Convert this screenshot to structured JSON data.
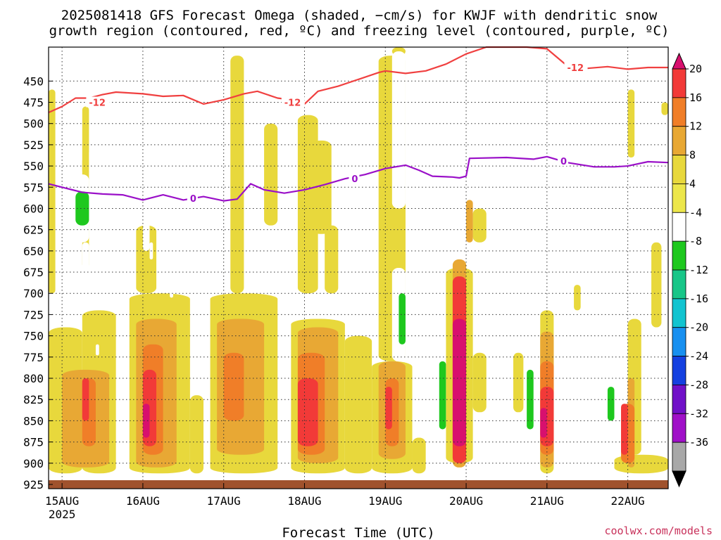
{
  "title_lines": [
    "2025081418 GFS Forecast Omega (shaded, −cm/s) for KWJF with dendritic snow",
    "growth region (contoured, red, ºC) and freezing level (contoured, purple, ºC)"
  ],
  "xlabel": "Forecast Time (UTC)",
  "credit": "coolwx.com/models",
  "chart_data": {
    "type": "heatmap",
    "title": "2025081418 GFS Forecast Omega (shaded, −cm/s) for KWJF with dendritic snow growth region (contoured, red, ºC) and freezing level (contoured, purple, ºC)",
    "xlabel": "Forecast Time (UTC)",
    "ylabel": "",
    "x_type": "time",
    "xlim": [
      "2025-08-14T20",
      "2025-08-22T12"
    ],
    "ylim": [
      930,
      410
    ],
    "y_reversed": true,
    "grid": true,
    "x_ticks": [
      {
        "label": "15AUG",
        "value": "2025-08-15T00",
        "sub": "2025"
      },
      {
        "label": "16AUG",
        "value": "2025-08-16T00",
        "sub": ""
      },
      {
        "label": "17AUG",
        "value": "2025-08-17T00",
        "sub": ""
      },
      {
        "label": "18AUG",
        "value": "2025-08-18T00",
        "sub": ""
      },
      {
        "label": "19AUG",
        "value": "2025-08-19T00",
        "sub": ""
      },
      {
        "label": "20AUG",
        "value": "2025-08-20T00",
        "sub": ""
      },
      {
        "label": "21AUG",
        "value": "2025-08-21T00",
        "sub": ""
      },
      {
        "label": "22AUG",
        "value": "2025-08-22T00",
        "sub": ""
      }
    ],
    "y_ticks": [
      450,
      475,
      500,
      525,
      550,
      575,
      600,
      625,
      650,
      675,
      700,
      725,
      750,
      775,
      800,
      825,
      850,
      875,
      900,
      925
    ],
    "colorbar": {
      "ticks": [
        20,
        16,
        12,
        8,
        4,
        -4,
        -8,
        -12,
        -16,
        -20,
        -24,
        -28,
        -32,
        -36
      ],
      "colors": [
        "#d8106e",
        "#f23a38",
        "#f07e28",
        "#e8a834",
        "#e8d83c",
        "#ece64a",
        "#ffffff",
        "#1ec81e",
        "#18c688",
        "#12c4d0",
        "#1890f0",
        "#1440e0",
        "#7010c8",
        "#a010c8",
        "#a8a8a8",
        "#000000"
      ]
    },
    "series": [
      {
        "name": "-12",
        "color": "#f04040",
        "points": [
          [
            "2025-08-14T20",
            487
          ],
          [
            "2025-08-15T00",
            480
          ],
          [
            "2025-08-15T04",
            470
          ],
          [
            "2025-08-15T08",
            470
          ],
          [
            "2025-08-15T12",
            466
          ],
          [
            "2025-08-15T16",
            463
          ],
          [
            "2025-08-16T00",
            465
          ],
          [
            "2025-08-16T06",
            468
          ],
          [
            "2025-08-16T12",
            467
          ],
          [
            "2025-08-16T18",
            477
          ],
          [
            "2025-08-17T00",
            472
          ],
          [
            "2025-08-17T06",
            465
          ],
          [
            "2025-08-17T10",
            462
          ],
          [
            "2025-08-17T16",
            470
          ],
          [
            "2025-08-17T20",
            472
          ],
          [
            "2025-08-18T00",
            477
          ],
          [
            "2025-08-18T04",
            462
          ],
          [
            "2025-08-18T10",
            456
          ],
          [
            "2025-08-18T16",
            448
          ],
          [
            "2025-08-18T22",
            440
          ],
          [
            "2025-08-19T00",
            438
          ],
          [
            "2025-08-19T06",
            441
          ],
          [
            "2025-08-19T12",
            438
          ],
          [
            "2025-08-19T18",
            430
          ],
          [
            "2025-08-20T00",
            418
          ],
          [
            "2025-08-20T06",
            407
          ],
          [
            "2025-08-20T18",
            407
          ],
          [
            "2025-08-21T00",
            412
          ],
          [
            "2025-08-21T06",
            432
          ],
          [
            "2025-08-21T12",
            435
          ],
          [
            "2025-08-21T18",
            433
          ],
          [
            "2025-08-22T00",
            436
          ],
          [
            "2025-08-22T06",
            434
          ],
          [
            "2025-08-22T12",
            434
          ]
        ]
      },
      {
        "name": "0",
        "color": "#9a10c8",
        "points": [
          [
            "2025-08-14T20",
            571
          ],
          [
            "2025-08-15T00",
            575
          ],
          [
            "2025-08-15T06",
            581
          ],
          [
            "2025-08-15T12",
            583
          ],
          [
            "2025-08-15T18",
            584
          ],
          [
            "2025-08-16T00",
            590
          ],
          [
            "2025-08-16T06",
            584
          ],
          [
            "2025-08-16T12",
            590
          ],
          [
            "2025-08-16T18",
            586
          ],
          [
            "2025-08-17T00",
            591
          ],
          [
            "2025-08-17T04",
            589
          ],
          [
            "2025-08-17T08",
            571
          ],
          [
            "2025-08-17T12",
            578
          ],
          [
            "2025-08-17T18",
            582
          ],
          [
            "2025-08-18T00",
            578
          ],
          [
            "2025-08-18T06",
            572
          ],
          [
            "2025-08-18T12",
            565
          ],
          [
            "2025-08-18T18",
            560
          ],
          [
            "2025-08-19T00",
            553
          ],
          [
            "2025-08-19T06",
            549
          ],
          [
            "2025-08-19T10",
            555
          ],
          [
            "2025-08-19T14",
            562
          ],
          [
            "2025-08-19T20",
            563
          ],
          [
            "2025-08-19T22",
            564
          ],
          [
            "2025-08-20T00",
            562
          ],
          [
            "2025-08-20T01",
            541
          ],
          [
            "2025-08-20T12",
            540
          ],
          [
            "2025-08-20T20",
            542
          ],
          [
            "2025-08-21T00",
            539
          ],
          [
            "2025-08-21T06",
            546
          ],
          [
            "2025-08-21T14",
            551
          ],
          [
            "2025-08-21T20",
            551
          ],
          [
            "2025-08-22T00",
            550
          ],
          [
            "2025-08-22T06",
            545
          ],
          [
            "2025-08-22T12",
            546
          ]
        ]
      }
    ],
    "contour_labels": [
      {
        "text": "-12",
        "series": "-12",
        "x": "2025-08-15T08",
        "y": 475
      },
      {
        "text": "-12",
        "series": "-12",
        "x": "2025-08-17T18",
        "y": 475
      },
      {
        "text": "-12",
        "series": "-12",
        "x": "2025-08-21T06",
        "y": 434
      },
      {
        "text": "0",
        "series": "0",
        "x": "2025-08-16T14",
        "y": 588
      },
      {
        "text": "0",
        "series": "0",
        "x": "2025-08-18T14",
        "y": 565
      },
      {
        "text": "0",
        "series": "0",
        "x": "2025-08-21T04",
        "y": 544
      }
    ],
    "cells": [
      {
        "v": 6,
        "x0": "2025-08-14T20",
        "x1": "2025-08-15T06",
        "y0": 912,
        "y1": 740
      },
      {
        "v": 6,
        "x0": "2025-08-15T06",
        "x1": "2025-08-15T16",
        "y0": 912,
        "y1": 720
      },
      {
        "v": 6,
        "x0": "2025-08-14T20",
        "x1": "2025-08-14T22",
        "y0": 700,
        "y1": 460
      },
      {
        "v": 6,
        "x0": "2025-08-15T06",
        "x1": "2025-08-15T08",
        "y0": 670,
        "y1": 480
      },
      {
        "v": 6,
        "x0": "2025-08-15T06",
        "x1": "2025-08-15T08",
        "y0": 560,
        "y1": 540
      },
      {
        "v": 6,
        "x0": "2025-08-15T20",
        "x1": "2025-08-16T14",
        "y0": 912,
        "y1": 700
      },
      {
        "v": 6,
        "x0": "2025-08-15T22",
        "x1": "2025-08-16T04",
        "y0": 700,
        "y1": 620
      },
      {
        "v": 6,
        "x0": "2025-08-16T14",
        "x1": "2025-08-16T18",
        "y0": 912,
        "y1": 820
      },
      {
        "v": 6,
        "x0": "2025-08-16T20",
        "x1": "2025-08-17T16",
        "y0": 912,
        "y1": 700
      },
      {
        "v": 6,
        "x0": "2025-08-17T02",
        "x1": "2025-08-17T06",
        "y0": 700,
        "y1": 420
      },
      {
        "v": 6,
        "x0": "2025-08-17T12",
        "x1": "2025-08-17T16",
        "y0": 620,
        "y1": 500
      },
      {
        "v": 6,
        "x0": "2025-08-17T20",
        "x1": "2025-08-18T12",
        "y0": 912,
        "y1": 730
      },
      {
        "v": 6,
        "x0": "2025-08-17T22",
        "x1": "2025-08-18T04",
        "y0": 700,
        "y1": 490
      },
      {
        "v": 6,
        "x0": "2025-08-18T12",
        "x1": "2025-08-18T20",
        "y0": 912,
        "y1": 750
      },
      {
        "v": 6,
        "x0": "2025-08-18T02",
        "x1": "2025-08-18T08",
        "y0": 630,
        "y1": 520
      },
      {
        "v": 6,
        "x0": "2025-08-18T06",
        "x1": "2025-08-18T10",
        "y0": 700,
        "y1": 620
      },
      {
        "v": 6,
        "x0": "2025-08-18T20",
        "x1": "2025-08-19T08",
        "y0": 912,
        "y1": 780
      },
      {
        "v": 6,
        "x0": "2025-08-18T22",
        "x1": "2025-08-19T06",
        "y0": 780,
        "y1": 420
      },
      {
        "v": 6,
        "x0": "2025-08-19T02",
        "x1": "2025-08-19T06",
        "y0": 420,
        "y1": 410
      },
      {
        "v": 6,
        "x0": "2025-08-19T08",
        "x1": "2025-08-19T12",
        "y0": 912,
        "y1": 870
      },
      {
        "v": 6,
        "x0": "2025-08-19T18",
        "x1": "2025-08-20T02",
        "y0": 900,
        "y1": 670
      },
      {
        "v": 6,
        "x0": "2025-08-20T02",
        "x1": "2025-08-20T06",
        "y0": 640,
        "y1": 600
      },
      {
        "v": 6,
        "x0": "2025-08-20T02",
        "x1": "2025-08-20T06",
        "y0": 840,
        "y1": 770
      },
      {
        "v": 6,
        "x0": "2025-08-20T14",
        "x1": "2025-08-20T17",
        "y0": 840,
        "y1": 770
      },
      {
        "v": 6,
        "x0": "2025-08-20T22",
        "x1": "2025-08-21T02",
        "y0": 912,
        "y1": 720
      },
      {
        "v": 6,
        "x0": "2025-08-21T08",
        "x1": "2025-08-21T10",
        "y0": 720,
        "y1": 690
      },
      {
        "v": 6,
        "x0": "2025-08-21T20",
        "x1": "2025-08-22T12",
        "y0": 912,
        "y1": 890
      },
      {
        "v": 6,
        "x0": "2025-08-22T00",
        "x1": "2025-08-22T04",
        "y0": 890,
        "y1": 730
      },
      {
        "v": 6,
        "x0": "2025-08-22T00",
        "x1": "2025-08-22T02",
        "y0": 540,
        "y1": 460
      },
      {
        "v": 6,
        "x0": "2025-08-22T07",
        "x1": "2025-08-22T10",
        "y0": 740,
        "y1": 640
      },
      {
        "v": 6,
        "x0": "2025-08-22T10",
        "x1": "2025-08-22T12",
        "y0": 490,
        "y1": 475
      },
      {
        "v": 10,
        "x0": "2025-08-15T00",
        "x1": "2025-08-15T14",
        "y0": 905,
        "y1": 790
      },
      {
        "v": 10,
        "x0": "2025-08-15T22",
        "x1": "2025-08-16T10",
        "y0": 905,
        "y1": 730
      },
      {
        "v": 10,
        "x0": "2025-08-16T22",
        "x1": "2025-08-17T12",
        "y0": 890,
        "y1": 730
      },
      {
        "v": 10,
        "x0": "2025-08-17T22",
        "x1": "2025-08-18T10",
        "y0": 900,
        "y1": 740
      },
      {
        "v": 10,
        "x0": "2025-08-18T22",
        "x1": "2025-08-19T06",
        "y0": 895,
        "y1": 780
      },
      {
        "v": 10,
        "x0": "2025-08-19T20",
        "x1": "2025-08-20T00",
        "y0": 905,
        "y1": 660
      },
      {
        "v": 10,
        "x0": "2025-08-20T00",
        "x1": "2025-08-20T02",
        "y0": 640,
        "y1": 590
      },
      {
        "v": 10,
        "x0": "2025-08-20T22",
        "x1": "2025-08-21T02",
        "y0": 905,
        "y1": 745
      },
      {
        "v": 10,
        "x0": "2025-08-22T00",
        "x1": "2025-08-22T02",
        "y0": 905,
        "y1": 800
      },
      {
        "v": 14,
        "x0": "2025-08-15T06",
        "x1": "2025-08-15T10",
        "y0": 880,
        "y1": 800
      },
      {
        "v": 14,
        "x0": "2025-08-16T00",
        "x1": "2025-08-16T06",
        "y0": 890,
        "y1": 760
      },
      {
        "v": 14,
        "x0": "2025-08-17T00",
        "x1": "2025-08-17T06",
        "y0": 850,
        "y1": 770
      },
      {
        "v": 14,
        "x0": "2025-08-17T22",
        "x1": "2025-08-18T06",
        "y0": 890,
        "y1": 770
      },
      {
        "v": 14,
        "x0": "2025-08-19T00",
        "x1": "2025-08-19T04",
        "y0": 880,
        "y1": 800
      },
      {
        "v": 14,
        "x0": "2025-08-20T22",
        "x1": "2025-08-21T02",
        "y0": 890,
        "y1": 780
      },
      {
        "v": 14,
        "x0": "2025-08-21T22",
        "x1": "2025-08-22T02",
        "y0": 900,
        "y1": 830
      },
      {
        "v": 18,
        "x0": "2025-08-15T06",
        "x1": "2025-08-15T08",
        "y0": 850,
        "y1": 800
      },
      {
        "v": 18,
        "x0": "2025-08-16T00",
        "x1": "2025-08-16T04",
        "y0": 880,
        "y1": 790
      },
      {
        "v": 18,
        "x0": "2025-08-17T22",
        "x1": "2025-08-18T04",
        "y0": 880,
        "y1": 800
      },
      {
        "v": 18,
        "x0": "2025-08-19T00",
        "x1": "2025-08-19T02",
        "y0": 860,
        "y1": 810
      },
      {
        "v": 18,
        "x0": "2025-08-19T20",
        "x1": "2025-08-20T00",
        "y0": 900,
        "y1": 680
      },
      {
        "v": 18,
        "x0": "2025-08-20T22",
        "x1": "2025-08-21T02",
        "y0": 880,
        "y1": 810
      },
      {
        "v": 18,
        "x0": "2025-08-21T22",
        "x1": "2025-08-22T00",
        "y0": 890,
        "y1": 830
      },
      {
        "v": 22,
        "x0": "2025-08-16T00",
        "x1": "2025-08-16T02",
        "y0": 870,
        "y1": 830
      },
      {
        "v": 22,
        "x0": "2025-08-19T20",
        "x1": "2025-08-20T00",
        "y0": 880,
        "y1": 730
      },
      {
        "v": 22,
        "x0": "2025-08-20T22",
        "x1": "2025-08-21T00",
        "y0": 870,
        "y1": 835
      },
      {
        "v": -6,
        "x0": "2025-08-15T04",
        "x1": "2025-08-15T08",
        "y0": 640,
        "y1": 560
      },
      {
        "v": -6,
        "x0": "2025-08-15T06",
        "x1": "2025-08-15T08",
        "y0": 710,
        "y1": 640
      },
      {
        "v": -6,
        "x0": "2025-08-15T08",
        "x1": "2025-08-15T10",
        "y0": 560,
        "y1": 530
      },
      {
        "v": -6,
        "x0": "2025-08-16T00",
        "x1": "2025-08-16T02",
        "y0": 650,
        "y1": 610
      },
      {
        "v": -6,
        "x0": "2025-08-16T02",
        "x1": "2025-08-16T03",
        "y0": 660,
        "y1": 640
      },
      {
        "v": -6,
        "x0": "2025-08-16T14",
        "x1": "2025-08-16T15",
        "y0": 597,
        "y1": 560
      },
      {
        "v": -6,
        "x0": "2025-08-16T08",
        "x1": "2025-08-16T09",
        "y0": 705,
        "y1": 690
      },
      {
        "v": -6,
        "x0": "2025-08-15T10",
        "x1": "2025-08-15T11",
        "y0": 773,
        "y1": 760
      },
      {
        "v": -6,
        "x0": "2025-08-17T14",
        "x1": "2025-08-17T16",
        "y0": 490,
        "y1": 410
      },
      {
        "v": -6,
        "x0": "2025-08-17T20",
        "x1": "2025-08-17T22",
        "y0": 430,
        "y1": 410
      },
      {
        "v": -6,
        "x0": "2025-08-18T18",
        "x1": "2025-08-18T20",
        "y0": 695,
        "y1": 670
      },
      {
        "v": -6,
        "x0": "2025-08-19T02",
        "x1": "2025-08-19T06",
        "y0": 780,
        "y1": 670
      },
      {
        "v": -6,
        "x0": "2025-08-19T02",
        "x1": "2025-08-19T06",
        "y0": 600,
        "y1": 415
      },
      {
        "v": -6,
        "x0": "2025-08-19T20",
        "x1": "2025-08-20T00",
        "y0": 618,
        "y1": 565
      },
      {
        "v": -6,
        "x0": "2025-08-20T04",
        "x1": "2025-08-20T06",
        "y0": 571,
        "y1": 566
      },
      {
        "v": -6,
        "x0": "2025-08-19T16",
        "x1": "2025-08-19T18",
        "y0": 880,
        "y1": 750
      },
      {
        "v": -6,
        "x0": "2025-08-21T00",
        "x1": "2025-08-21T02",
        "y0": 428,
        "y1": 418
      },
      {
        "v": -6,
        "x0": "2025-08-20T18",
        "x1": "2025-08-20T20",
        "y0": 880,
        "y1": 760
      },
      {
        "v": -6,
        "x0": "2025-08-21T18",
        "x1": "2025-08-21T20",
        "y0": 870,
        "y1": 760
      },
      {
        "v": -10,
        "x0": "2025-08-15T04",
        "x1": "2025-08-15T08",
        "y0": 620,
        "y1": 580
      },
      {
        "v": -10,
        "x0": "2025-08-19T04",
        "x1": "2025-08-19T06",
        "y0": 760,
        "y1": 700
      },
      {
        "v": -10,
        "x0": "2025-08-19T16",
        "x1": "2025-08-19T18",
        "y0": 860,
        "y1": 780
      },
      {
        "v": -10,
        "x0": "2025-08-20T18",
        "x1": "2025-08-20T20",
        "y0": 860,
        "y1": 790
      },
      {
        "v": -10,
        "x0": "2025-08-21T18",
        "x1": "2025-08-21T20",
        "y0": 850,
        "y1": 810
      }
    ],
    "ground": {
      "y0": 930,
      "y1": 920,
      "color": "#a0522d"
    }
  }
}
